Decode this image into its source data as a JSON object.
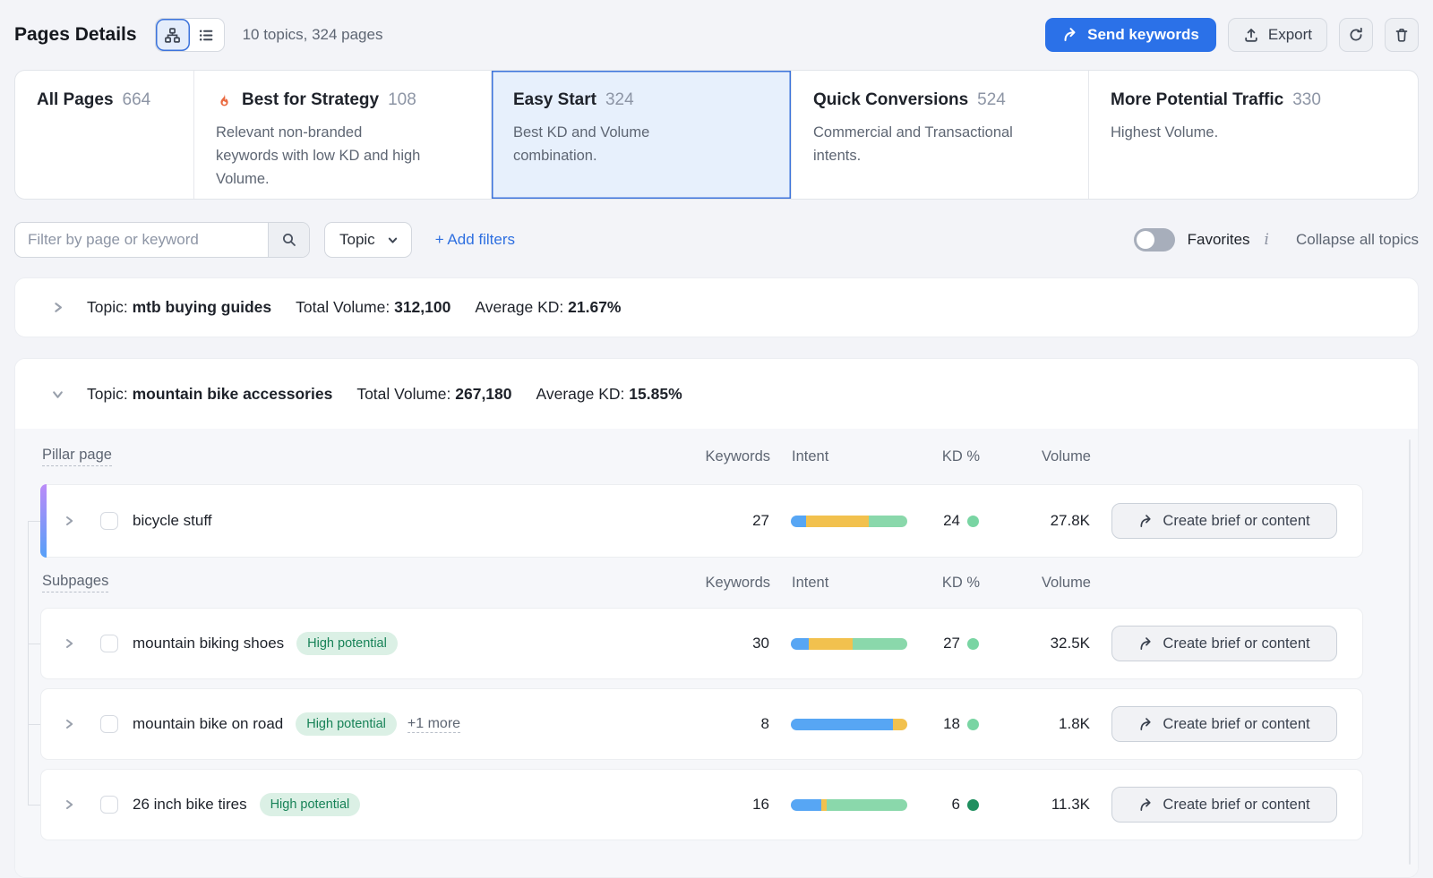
{
  "header": {
    "title": "Pages Details",
    "summary": "10 topics, 324 pages",
    "send_keywords_label": "Send keywords",
    "export_label": "Export"
  },
  "tabs": [
    {
      "label": "All Pages",
      "count": "664",
      "description": "",
      "selected": false
    },
    {
      "label": "Best for Strategy",
      "count": "108",
      "description": "Relevant non-branded keywords with low KD and high Volume.",
      "selected": false,
      "flame_icon": true
    },
    {
      "label": "Easy Start",
      "count": "324",
      "description": "Best KD and Volume combination.",
      "selected": true
    },
    {
      "label": "Quick Conversions",
      "count": "524",
      "description": "Commercial and Transactional intents.",
      "selected": false
    },
    {
      "label": "More Potential Traffic",
      "count": "330",
      "description": "Highest Volume.",
      "selected": false
    }
  ],
  "filters": {
    "search_placeholder": "Filter by page or keyword",
    "topic_dropdown_label": "Topic",
    "add_filters_label": "+ Add filters",
    "favorites_label": "Favorites",
    "favorites_on": false,
    "collapse_all_label": "Collapse all topics"
  },
  "labels": {
    "topic_prefix": "Topic:",
    "total_volume_prefix": "Total Volume:",
    "average_kd_prefix": "Average KD:",
    "pillar_page": "Pillar page",
    "subpages": "Subpages",
    "columns": {
      "keywords": "Keywords",
      "intent": "Intent",
      "kd": "KD %",
      "volume": "Volume"
    },
    "create_brief_label": "Create brief or content",
    "high_potential": "High potential",
    "more_badge": "+1 more"
  },
  "topics": [
    {
      "name": "mtb buying guides",
      "total_volume": "312,100",
      "average_kd": "21.67%",
      "expanded": false
    },
    {
      "name": "mountain bike accessories",
      "total_volume": "267,180",
      "average_kd": "15.85%",
      "expanded": true
    }
  ],
  "table": {
    "pillar": {
      "name": "bicycle stuff",
      "keywords": "27",
      "kd": "24",
      "kd_dot_color": "#79D5A3",
      "volume": "27.8K",
      "intent": [
        {
          "color": "#57A6F4",
          "pct": 13
        },
        {
          "color": "#F2C14E",
          "pct": 54
        },
        {
          "color": "#8AD8AB",
          "pct": 33
        }
      ]
    },
    "subpages": [
      {
        "name": "mountain biking shoes",
        "badge": "High potential",
        "keywords": "30",
        "kd": "27",
        "kd_dot_color": "#79D5A3",
        "volume": "32.5K",
        "intent": [
          {
            "color": "#57A6F4",
            "pct": 15
          },
          {
            "color": "#F2C14E",
            "pct": 38
          },
          {
            "color": "#8AD8AB",
            "pct": 47
          }
        ]
      },
      {
        "name": "mountain bike on road",
        "badge": "High potential",
        "more": "+1 more",
        "keywords": "8",
        "kd": "18",
        "kd_dot_color": "#79D5A3",
        "volume": "1.8K",
        "intent": [
          {
            "color": "#57A6F4",
            "pct": 88
          },
          {
            "color": "#F2C14E",
            "pct": 12
          }
        ]
      },
      {
        "name": "26 inch bike tires",
        "badge": "High potential",
        "keywords": "16",
        "kd": "6",
        "kd_dot_color": "#1F8F5F",
        "volume": "11.3K",
        "intent": [
          {
            "color": "#57A6F4",
            "pct": 26
          },
          {
            "color": "#F2C14E",
            "pct": 5
          },
          {
            "color": "#8AD8AB",
            "pct": 69
          }
        ]
      }
    ]
  },
  "colors": {
    "accent_blue": "#2B71E8",
    "selected_tab_bg": "#E7F0FC",
    "selected_tab_border": "#3C73DB",
    "flame_orange": "#EA6A41",
    "badge_bg": "#DBF0E5",
    "badge_text": "#178257",
    "intent_blue": "#57A6F4",
    "intent_yellow": "#F2C14E",
    "intent_green": "#8AD8AB",
    "kd_dot_light_green": "#79D5A3",
    "kd_dot_dark_green": "#1F8F5F",
    "pillar_gradient_top": "#BB8BF8",
    "pillar_gradient_bottom": "#57A0F8"
  }
}
